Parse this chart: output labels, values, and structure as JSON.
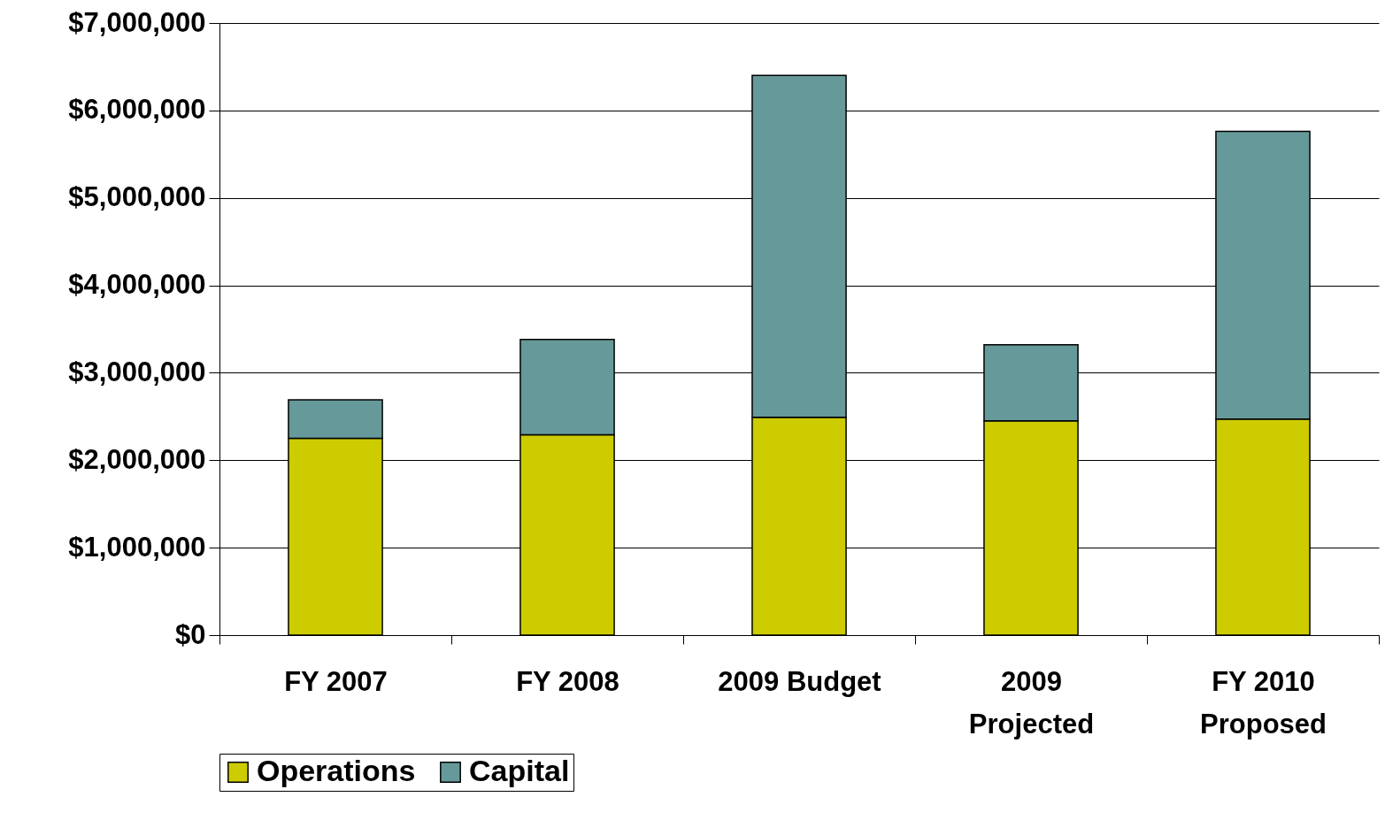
{
  "chart_data": {
    "type": "bar",
    "stacked": true,
    "categories": [
      "FY 2007",
      "FY 2008",
      "2009 Budget",
      "2009 Projected",
      "FY 2010 Proposed"
    ],
    "series": [
      {
        "name": "Operations",
        "color": "#cccc00",
        "values": [
          2250000,
          2290000,
          2490000,
          2450000,
          2470000
        ]
      },
      {
        "name": "Capital",
        "color": "#669999",
        "values": [
          440000,
          1090000,
          3910000,
          870000,
          3290000
        ]
      }
    ],
    "ylim": [
      0,
      7000000
    ],
    "yticks": [
      {
        "value": 0,
        "label": "$0"
      },
      {
        "value": 1000000,
        "label": "$1,000,000"
      },
      {
        "value": 2000000,
        "label": "$2,000,000"
      },
      {
        "value": 3000000,
        "label": "$3,000,000"
      },
      {
        "value": 4000000,
        "label": "$4,000,000"
      },
      {
        "value": 5000000,
        "label": "$5,000,000"
      },
      {
        "value": 6000000,
        "label": "$6,000,000"
      },
      {
        "value": 7000000,
        "label": "$7,000,000"
      }
    ],
    "grid": "y",
    "legend": "bottom"
  }
}
